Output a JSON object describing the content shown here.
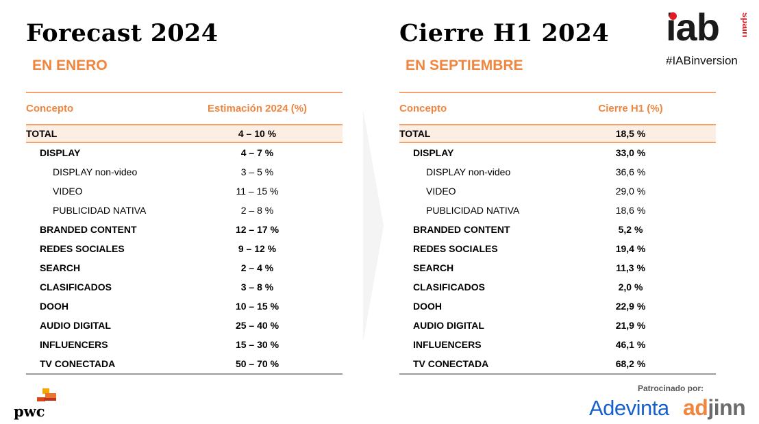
{
  "left": {
    "title": "Forecast 2024",
    "subtitle": "EN ENERO",
    "col_concept": "Concepto",
    "col_value": "Estimación 2024 (%)",
    "rows": [
      {
        "label": "TOTAL",
        "value": "4 – 10 %"
      },
      {
        "label": "DISPLAY",
        "value": "4 – 7 %"
      },
      {
        "label": "DISPLAY non-video",
        "value": "3 – 5 %"
      },
      {
        "label": "VIDEO",
        "value": "11 – 15 %"
      },
      {
        "label": "PUBLICIDAD NATIVA",
        "value": "2 – 8 %"
      },
      {
        "label": "BRANDED CONTENT",
        "value": "12 – 17 %"
      },
      {
        "label": "REDES SOCIALES",
        "value": "9 – 12 %"
      },
      {
        "label": "SEARCH",
        "value": "2 – 4 %"
      },
      {
        "label": "CLASIFICADOS",
        "value": "3 – 8 %"
      },
      {
        "label": "DOOH",
        "value": "10 – 15 %"
      },
      {
        "label": "AUDIO DIGITAL",
        "value": "25 – 40 %"
      },
      {
        "label": "INFLUENCERS",
        "value": "15 – 30 %"
      },
      {
        "label": "TV CONECTADA",
        "value": "50 – 70 %"
      }
    ]
  },
  "right": {
    "title": "Cierre H1 2024",
    "subtitle": "EN SEPTIEMBRE",
    "col_concept": "Concepto",
    "col_value": "Cierre H1 (%)",
    "rows": [
      {
        "label": "TOTAL",
        "value": "18,5 %"
      },
      {
        "label": "DISPLAY",
        "value": "33,0 %"
      },
      {
        "label": "DISPLAY non-video",
        "value": "36,6 %"
      },
      {
        "label": "VIDEO",
        "value": "29,0 %"
      },
      {
        "label": "PUBLICIDAD NATIVA",
        "value": "18,6 %"
      },
      {
        "label": "BRANDED CONTENT",
        "value": "5,2 %"
      },
      {
        "label": "REDES SOCIALES",
        "value": "19,4 %"
      },
      {
        "label": "SEARCH",
        "value": "11,3 %"
      },
      {
        "label": "CLASIFICADOS",
        "value": "2,0 %"
      },
      {
        "label": "DOOH",
        "value": "22,9 %"
      },
      {
        "label": "AUDIO DIGITAL",
        "value": "21,9 %"
      },
      {
        "label": "INFLUENCERS",
        "value": "46,1 %"
      },
      {
        "label": "TV CONECTADA",
        "value": "68,2 %"
      }
    ]
  },
  "branding": {
    "iab_logo": "iab",
    "iab_region": "spain",
    "hashtag": "#IABinversion",
    "pwc_logo": "pwc",
    "sponsor_label": "Patrocinado por:",
    "sponsor_1": "Adevinta",
    "sponsor_2_a": "ad",
    "sponsor_2_b": "jinn"
  },
  "colors": {
    "accent": "#f0853e",
    "total_row_bg": "#fdeee4",
    "adevinta_blue": "#1760c9",
    "iab_red": "#e01b22"
  }
}
